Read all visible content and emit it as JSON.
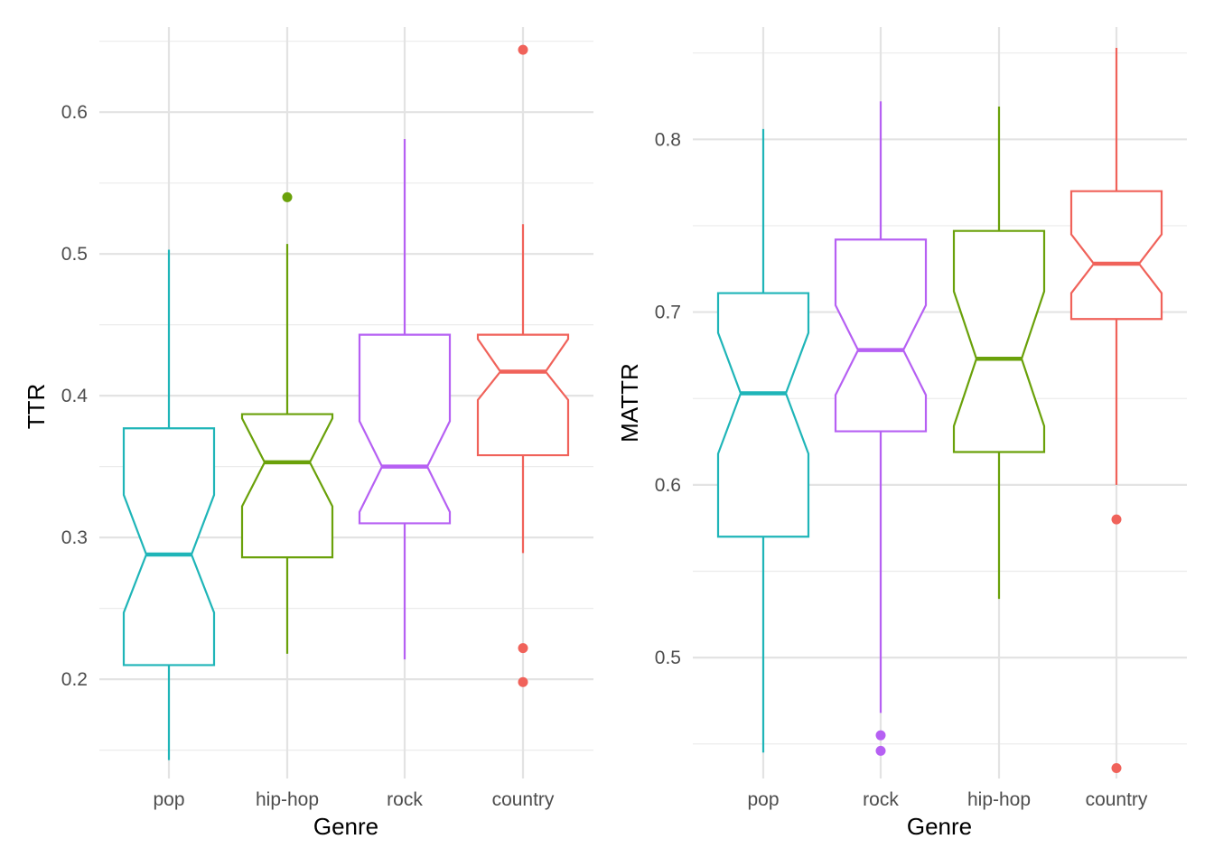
{
  "chart_data": [
    {
      "type": "boxplot",
      "notched": true,
      "xlabel": "Genre",
      "ylabel": "TTR",
      "ylim": [
        0.13,
        0.66
      ],
      "yticks": [
        0.2,
        0.3,
        0.4,
        0.5,
        0.6
      ],
      "ytick_labels": [
        "0.2",
        "0.3",
        "0.4",
        "0.5",
        "0.6"
      ],
      "grid": true,
      "categories": [
        "pop",
        "hip-hop",
        "rock",
        "country"
      ],
      "boxes": [
        {
          "category": "pop",
          "color": "#1fb5b8",
          "whisker_low": 0.143,
          "q1": 0.21,
          "median": 0.288,
          "q3": 0.377,
          "whisker_high": 0.503,
          "notch_low": 0.247,
          "notch_high": 0.33,
          "outliers": []
        },
        {
          "category": "hip-hop",
          "color": "#6aa10a",
          "whisker_low": 0.218,
          "q1": 0.286,
          "median": 0.353,
          "q3": 0.387,
          "whisker_high": 0.507,
          "notch_low": 0.322,
          "notch_high": 0.384,
          "outliers": [
            0.54
          ]
        },
        {
          "category": "rock",
          "color": "#b660f3",
          "whisker_low": 0.214,
          "q1": 0.31,
          "median": 0.35,
          "q3": 0.443,
          "whisker_high": 0.581,
          "notch_low": 0.318,
          "notch_high": 0.382,
          "outliers": []
        },
        {
          "category": "country",
          "color": "#f0625a",
          "whisker_low": 0.289,
          "q1": 0.358,
          "median": 0.417,
          "q3": 0.443,
          "whisker_high": 0.521,
          "notch_low": 0.397,
          "notch_high": 0.44,
          "outliers": [
            0.644,
            0.222,
            0.198
          ]
        }
      ]
    },
    {
      "type": "boxplot",
      "notched": true,
      "xlabel": "Genre",
      "ylabel": "MATTR",
      "ylim": [
        0.43,
        0.865
      ],
      "yticks": [
        0.5,
        0.6,
        0.7,
        0.8
      ],
      "ytick_labels": [
        "0.5",
        "0.6",
        "0.7",
        "0.8"
      ],
      "grid": true,
      "categories": [
        "pop",
        "rock",
        "hip-hop",
        "country"
      ],
      "boxes": [
        {
          "category": "pop",
          "color": "#1fb5b8",
          "whisker_low": 0.445,
          "q1": 0.57,
          "median": 0.653,
          "q3": 0.711,
          "whisker_high": 0.806,
          "notch_low": 0.618,
          "notch_high": 0.688,
          "outliers": []
        },
        {
          "category": "rock",
          "color": "#b660f3",
          "whisker_low": 0.468,
          "q1": 0.631,
          "median": 0.678,
          "q3": 0.742,
          "whisker_high": 0.822,
          "notch_low": 0.652,
          "notch_high": 0.704,
          "outliers": [
            0.455,
            0.446
          ]
        },
        {
          "category": "hip-hop",
          "color": "#6aa10a",
          "whisker_low": 0.534,
          "q1": 0.619,
          "median": 0.673,
          "q3": 0.747,
          "whisker_high": 0.819,
          "notch_low": 0.634,
          "notch_high": 0.712,
          "outliers": []
        },
        {
          "category": "country",
          "color": "#f0625a",
          "whisker_low": 0.6,
          "q1": 0.696,
          "median": 0.728,
          "q3": 0.77,
          "whisker_high": 0.853,
          "notch_low": 0.711,
          "notch_high": 0.745,
          "outliers": [
            0.58,
            0.436
          ]
        }
      ]
    }
  ]
}
